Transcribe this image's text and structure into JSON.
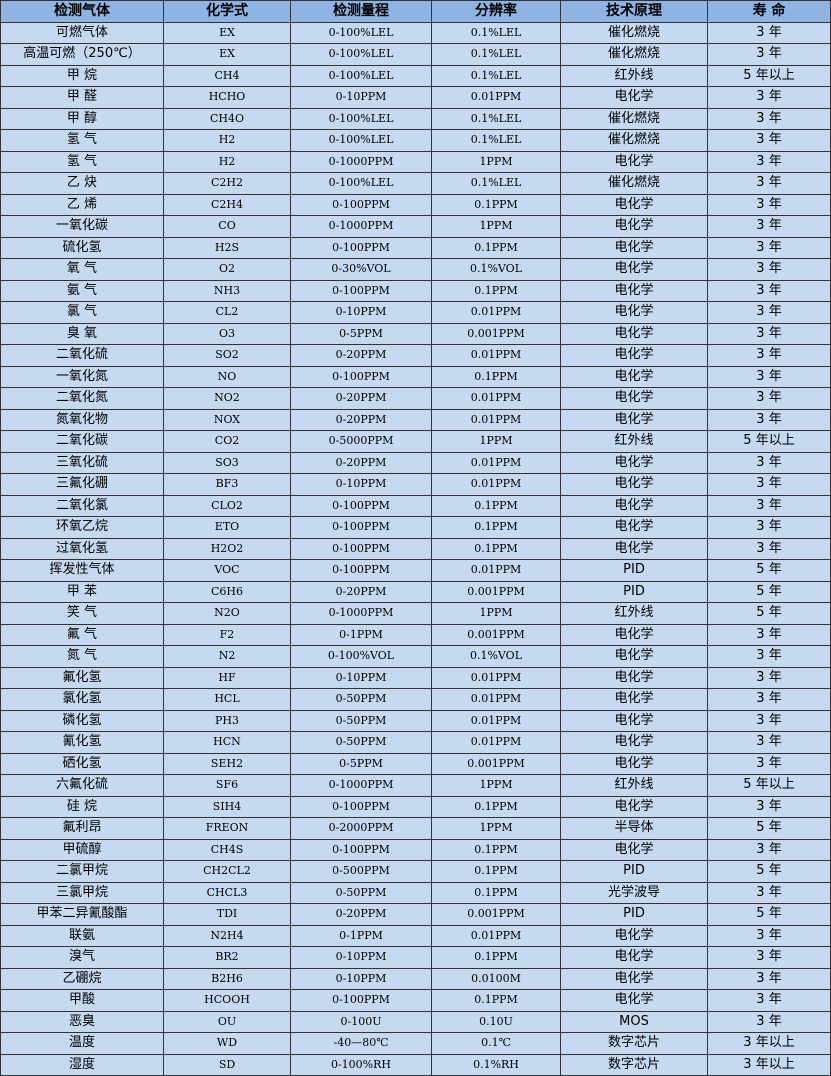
{
  "colors": {
    "header_bg": "#8db4e2",
    "row_bg": "#c5d9f1",
    "border": "#333333"
  },
  "headers": [
    "检测气体",
    "化学式",
    "检测量程",
    "分辨率",
    "技术原理",
    "寿 命"
  ],
  "rows": [
    [
      "可燃气体",
      "EX",
      "0-100%LEL",
      "0.1%LEL",
      "催化燃烧",
      "3 年"
    ],
    [
      "高温可燃（250℃）",
      "EX",
      "0-100%LEL",
      "0.1%LEL",
      "催化燃烧",
      "3 年"
    ],
    [
      "甲 烷",
      "CH4",
      "0-100%LEL",
      "0.1%LEL",
      "红外线",
      "5 年以上"
    ],
    [
      "甲 醛",
      "HCHO",
      "0-10PPM",
      "0.01PPM",
      "电化学",
      "3 年"
    ],
    [
      "甲 醇",
      "CH4O",
      "0-100%LEL",
      "0.1%LEL",
      "催化燃烧",
      "3 年"
    ],
    [
      "氢 气",
      "H2",
      "0-100%LEL",
      "0.1%LEL",
      "催化燃烧",
      "3 年"
    ],
    [
      "氢 气",
      "H2",
      "0-1000PPM",
      "1PPM",
      "电化学",
      "3 年"
    ],
    [
      "乙 炔",
      "C2H2",
      "0-100%LEL",
      "0.1%LEL",
      "催化燃烧",
      "3 年"
    ],
    [
      "乙 烯",
      "C2H4",
      "0-100PPM",
      "0.1PPM",
      "电化学",
      "3 年"
    ],
    [
      "一氧化碳",
      "CO",
      "0-1000PPM",
      "1PPM",
      "电化学",
      "3 年"
    ],
    [
      "硫化氢",
      "H2S",
      "0-100PPM",
      "0.1PPM",
      "电化学",
      "3 年"
    ],
    [
      "氧 气",
      "O2",
      "0-30%VOL",
      "0.1%VOL",
      "电化学",
      "3 年"
    ],
    [
      "氨 气",
      "NH3",
      "0-100PPM",
      "0.1PPM",
      "电化学",
      "3 年"
    ],
    [
      "氯 气",
      "CL2",
      "0-10PPM",
      "0.01PPM",
      "电化学",
      "3 年"
    ],
    [
      "臭 氧",
      "O3",
      "0-5PPM",
      "0.001PPM",
      "电化学",
      "3 年"
    ],
    [
      "二氧化硫",
      "SO2",
      "0-20PPM",
      "0.01PPM",
      "电化学",
      "3 年"
    ],
    [
      "一氧化氮",
      "NO",
      "0-100PPM",
      "0.1PPM",
      "电化学",
      "3 年"
    ],
    [
      "二氧化氮",
      "NO2",
      "0-20PPM",
      "0.01PPM",
      "电化学",
      "3 年"
    ],
    [
      "氮氧化物",
      "NOX",
      "0-20PPM",
      "0.01PPM",
      "电化学",
      "3 年"
    ],
    [
      "二氧化碳",
      "CO2",
      "0-5000PPM",
      "1PPM",
      "红外线",
      "5 年以上"
    ],
    [
      "三氧化硫",
      "SO3",
      "0-20PPM",
      "0.01PPM",
      "电化学",
      "3 年"
    ],
    [
      "三氟化硼",
      "BF3",
      "0-10PPM",
      "0.01PPM",
      "电化学",
      "3 年"
    ],
    [
      "二氧化氯",
      "CLO2",
      "0-100PPM",
      "0.1PPM",
      "电化学",
      "3 年"
    ],
    [
      "环氧乙烷",
      "ETO",
      "0-100PPM",
      "0.1PPM",
      "电化学",
      "3 年"
    ],
    [
      "过氧化氢",
      "H2O2",
      "0-100PPM",
      "0.1PPM",
      "电化学",
      "3 年"
    ],
    [
      "挥发性气体",
      "VOC",
      "0-100PPM",
      "0.01PPM",
      "PID",
      "5 年"
    ],
    [
      "甲 苯",
      "C6H6",
      "0-20PPM",
      "0.001PPM",
      "PID",
      "5 年"
    ],
    [
      "笑 气",
      "N2O",
      "0-1000PPM",
      "1PPM",
      "红外线",
      "5 年"
    ],
    [
      "氟 气",
      "F2",
      "0-1PPM",
      "0.001PPM",
      "电化学",
      "3 年"
    ],
    [
      "氮 气",
      "N2",
      "0-100%VOL",
      "0.1%VOL",
      "电化学",
      "3 年"
    ],
    [
      "氟化氢",
      "HF",
      "0-10PPM",
      "0.01PPM",
      "电化学",
      "3 年"
    ],
    [
      "氯化氢",
      "HCL",
      "0-50PPM",
      "0.01PPM",
      "电化学",
      "3 年"
    ],
    [
      "磷化氢",
      "PH3",
      "0-50PPM",
      "0.01PPM",
      "电化学",
      "3 年"
    ],
    [
      "氰化氢",
      "HCN",
      "0-50PPM",
      "0.01PPM",
      "电化学",
      "3 年"
    ],
    [
      "硒化氢",
      "SEH2",
      "0-5PPM",
      "0.001PPM",
      "电化学",
      "3 年"
    ],
    [
      "六氟化硫",
      "SF6",
      "0-1000PPM",
      "1PPM",
      "红外线",
      "5 年以上"
    ],
    [
      "硅 烷",
      "SIH4",
      "0-100PPM",
      "0.1PPM",
      "电化学",
      "3 年"
    ],
    [
      "氟利昂",
      "FREON",
      "0-2000PPM",
      "1PPM",
      "半导体",
      "5 年"
    ],
    [
      "甲硫醇",
      "CH4S",
      "0-100PPM",
      "0.1PPM",
      "电化学",
      "3 年"
    ],
    [
      "二氯甲烷",
      "CH2CL2",
      "0-500PPM",
      "0.1PPM",
      "PID",
      "5 年"
    ],
    [
      "三氯甲烷",
      "CHCL3",
      "0-50PPM",
      "0.1PPM",
      "光学波导",
      "3 年"
    ],
    [
      "甲苯二异氰酸酯",
      "TDI",
      "0-20PPM",
      "0.001PPM",
      "PID",
      "5 年"
    ],
    [
      "联氨",
      "N2H4",
      "0-1PPM",
      "0.01PPM",
      "电化学",
      "3 年"
    ],
    [
      "溴气",
      "BR2",
      "0-10PPM",
      "0.1PPM",
      "电化学",
      "3 年"
    ],
    [
      "乙硼烷",
      "B2H6",
      "0-10PPM",
      "0.0100M",
      "电化学",
      "3 年"
    ],
    [
      "甲酸",
      "HCOOH",
      "0-100PPM",
      "0.1PPM",
      "电化学",
      "3 年"
    ],
    [
      "恶臭",
      "OU",
      "0-100U",
      "0.10U",
      "MOS",
      "3 年"
    ],
    [
      "温度",
      "WD",
      "-40—80℃",
      "0.1℃",
      "数字芯片",
      "3 年以上"
    ],
    [
      "湿度",
      "SD",
      "0-100%RH",
      "0.1%RH",
      "数字芯片",
      "3 年以上"
    ]
  ]
}
